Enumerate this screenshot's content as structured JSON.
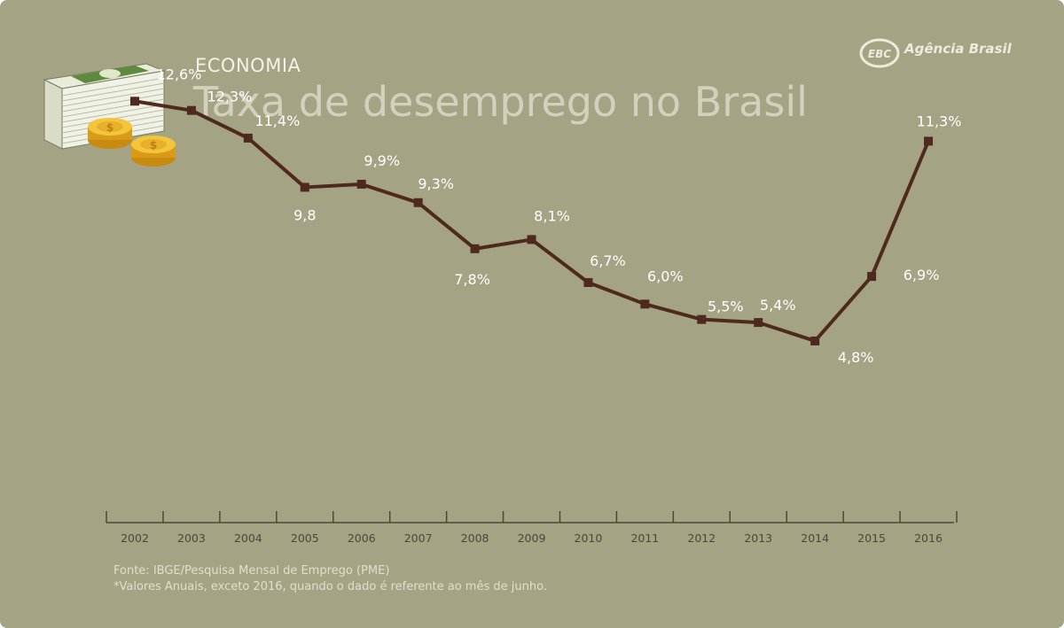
{
  "header": {
    "category": "ECONOMIA",
    "title": "Taxa de desemprego no Brasil",
    "logo_badge": "EBC",
    "logo_text": "Agência Brasil"
  },
  "footer": {
    "source": "Fonte: IBGE/Pesquisa Mensal de Emprego (PME)",
    "note": "*Valores Anuais, exceto 2016, quando o dado é referente ao mês de junho."
  },
  "colors": {
    "background": "#a4a384",
    "line": "#4e2a1e",
    "labels": "#ffffff",
    "axis": "#4a4939"
  },
  "chart_data": {
    "type": "line",
    "title": "Taxa de desemprego no Brasil",
    "xlabel": "",
    "ylabel": "",
    "x": [
      "2002",
      "2003",
      "2004",
      "2005",
      "2006",
      "2007",
      "2008",
      "2009",
      "2010",
      "2011",
      "2012",
      "2013",
      "2014",
      "2015",
      "2016"
    ],
    "series": [
      {
        "values": [
          12.6,
          12.3,
          11.4,
          9.8,
          9.9,
          9.3,
          7.8,
          8.1,
          6.7,
          6.0,
          5.5,
          5.4,
          4.8,
          6.9,
          11.3
        ]
      }
    ],
    "data_labels": [
      "12,6%",
      "12,3%",
      "11,4%",
      "9,8",
      "9,9%",
      "9,3%",
      "7,8%",
      "8,1%",
      "6,7%",
      "6,0%",
      "5,5%",
      "5,4%",
      "4,8%",
      "6,9%",
      "11,3%"
    ],
    "grid": false,
    "legend": "none"
  }
}
